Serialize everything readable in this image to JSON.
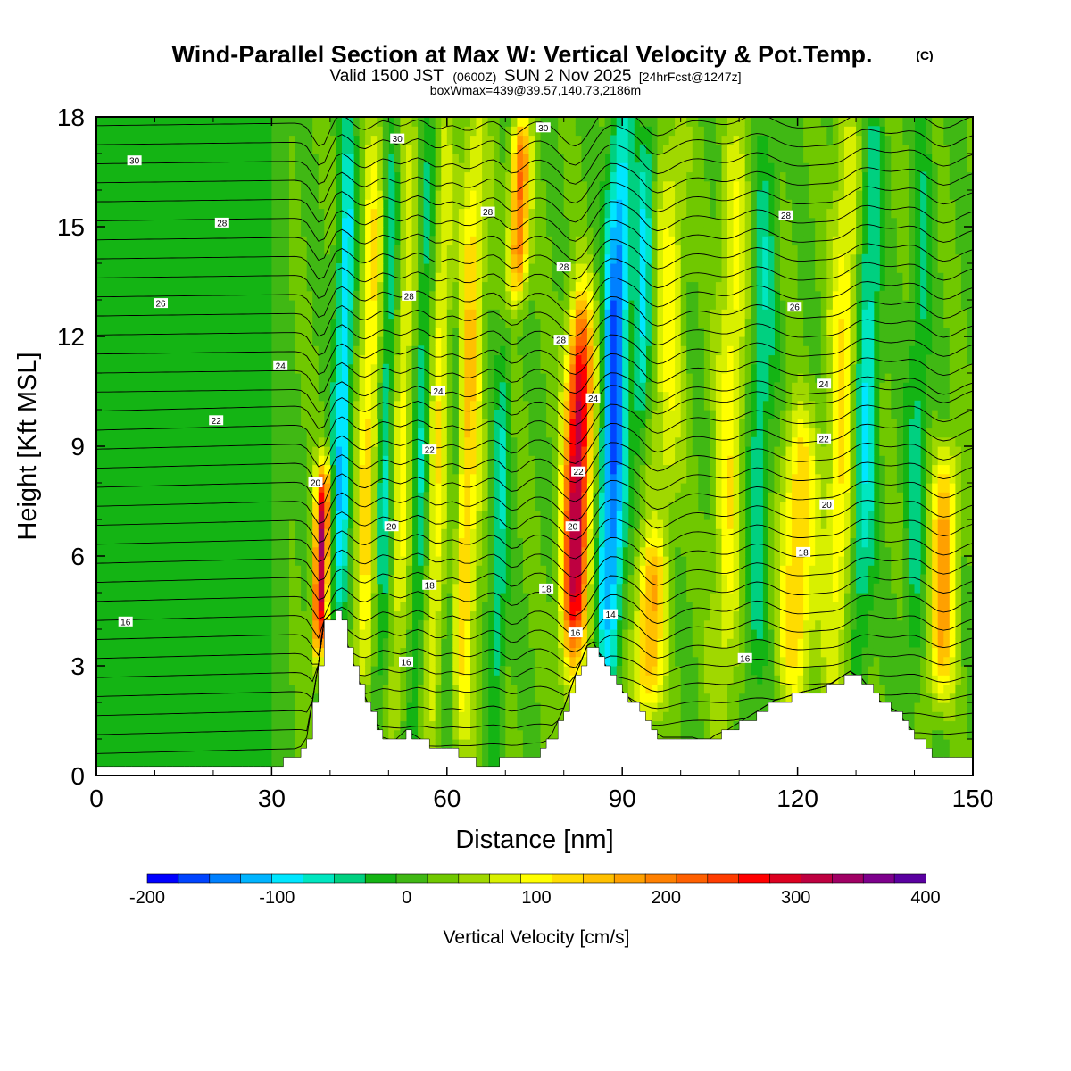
{
  "title": "Wind-Parallel Section at Max W: Vertical Velocity & Pot.Temp.",
  "copyright": "(C)",
  "subtitle_pre": "Valid 1500 JST",
  "subtitle_utc": "(0600Z)",
  "subtitle_date": "SUN 2 Nov 2025",
  "subtitle_fcst": "[24hrFcst@1247z]",
  "subtitle_box": "boxWmax=439@39.57,140.73,2186m",
  "chart_data": {
    "type": "heatmap",
    "xlabel": "Distance [nm]",
    "ylabel": "Height [Kft MSL]",
    "xlim": [
      0,
      150
    ],
    "ylim": [
      0,
      18
    ],
    "xticks": [
      0,
      30,
      60,
      90,
      120,
      150
    ],
    "yticks": [
      0,
      3,
      6,
      9,
      12,
      15,
      18
    ],
    "colorbar": {
      "label": "Vertical Velocity [cm/s]",
      "min": -200,
      "max": 400,
      "step": 25,
      "tick_values": [
        -200,
        -100,
        0,
        100,
        200,
        300,
        400
      ],
      "tick_labels": [
        "-200",
        "-100",
        "0",
        "100",
        "200",
        "300",
        "400"
      ],
      "colors": [
        "#0000ff",
        "#0044ff",
        "#0080ff",
        "#00b4ff",
        "#00e6ff",
        "#00e6c0",
        "#00d080",
        "#14b414",
        "#40b814",
        "#70c800",
        "#a0d800",
        "#d8f000",
        "#ffff00",
        "#ffdc00",
        "#ffc000",
        "#ffa000",
        "#ff8000",
        "#ff6000",
        "#ff3c00",
        "#ff0000",
        "#dc0020",
        "#be0040",
        "#a00064",
        "#7d008c",
        "#5a00a0"
      ]
    },
    "terrain_kft": [
      [
        0,
        0.3
      ],
      [
        30,
        0.3
      ],
      [
        34,
        0.5
      ],
      [
        36,
        1.0
      ],
      [
        37,
        2.0
      ],
      [
        38,
        3.0
      ],
      [
        39,
        4.2
      ],
      [
        41,
        4.5
      ],
      [
        42,
        4.2
      ],
      [
        43,
        3.5
      ],
      [
        45,
        2.5
      ],
      [
        47,
        1.7
      ],
      [
        49,
        1.0
      ],
      [
        51,
        0.9
      ],
      [
        53,
        1.2
      ],
      [
        55,
        1.0
      ],
      [
        57,
        0.8
      ],
      [
        60,
        0.7
      ],
      [
        63,
        0.5
      ],
      [
        66,
        0.3
      ],
      [
        70,
        0.4
      ],
      [
        74,
        0.4
      ],
      [
        76,
        0.7
      ],
      [
        78,
        1.1
      ],
      [
        80,
        1.8
      ],
      [
        82,
        2.7
      ],
      [
        84,
        3.5
      ],
      [
        85,
        3.6
      ],
      [
        87,
        3.0
      ],
      [
        89,
        2.4
      ],
      [
        91,
        2.1
      ],
      [
        93,
        1.7
      ],
      [
        95,
        1.2
      ],
      [
        97,
        1.0
      ],
      [
        100,
        1.0
      ],
      [
        105,
        1.0
      ],
      [
        108,
        1.2
      ],
      [
        112,
        1.6
      ],
      [
        116,
        2.0
      ],
      [
        120,
        2.2
      ],
      [
        125,
        2.4
      ],
      [
        129,
        2.8
      ],
      [
        131,
        2.6
      ],
      [
        134,
        2.0
      ],
      [
        137,
        1.7
      ],
      [
        140,
        1.1
      ],
      [
        143,
        0.6
      ],
      [
        150,
        0.6
      ]
    ],
    "updraft_bands": [
      {
        "x": 38.5,
        "w": 1.2,
        "peak": 320,
        "h0": 3.2,
        "h1": 8.5
      },
      {
        "x": 46,
        "w": 1.8,
        "peak": 110,
        "h0": 1.5,
        "h1": 18
      },
      {
        "x": 52,
        "w": 1.8,
        "peak": 80,
        "h0": 1.5,
        "h1": 18
      },
      {
        "x": 58,
        "w": 1.5,
        "peak": 90,
        "h0": 1.0,
        "h1": 18
      },
      {
        "x": 63,
        "w": 2.2,
        "peak": 130,
        "h0": 1.0,
        "h1": 18
      },
      {
        "x": 71,
        "w": 1.6,
        "peak": 210,
        "h0": 13,
        "h1": 18
      },
      {
        "x": 82,
        "w": 2.2,
        "peak": 330,
        "h0": 3.0,
        "h1": 13
      },
      {
        "x": 95,
        "w": 2.5,
        "peak": 150,
        "h0": 1.5,
        "h1": 6.5
      },
      {
        "x": 97,
        "w": 2.5,
        "peak": 80,
        "h0": 6.5,
        "h1": 18
      },
      {
        "x": 108,
        "w": 2.5,
        "peak": 90,
        "h0": 1.5,
        "h1": 18
      },
      {
        "x": 120,
        "w": 3.0,
        "peak": 130,
        "h0": 2.0,
        "h1": 10
      },
      {
        "x": 127,
        "w": 2.5,
        "peak": 100,
        "h0": 2.0,
        "h1": 18
      },
      {
        "x": 145,
        "w": 2.2,
        "peak": 160,
        "h0": 2.0,
        "h1": 9
      }
    ],
    "downdraft_bands": [
      {
        "x": 41.5,
        "w": 1.6,
        "peak": -120,
        "h0": 3.0,
        "h1": 18
      },
      {
        "x": 49,
        "w": 1.5,
        "peak": -80,
        "h0": 1.5,
        "h1": 18
      },
      {
        "x": 55,
        "w": 1.5,
        "peak": -70,
        "h0": 1.5,
        "h1": 18
      },
      {
        "x": 61,
        "w": 1.2,
        "peak": -60,
        "h0": 1.0,
        "h1": 14
      },
      {
        "x": 69,
        "w": 1.5,
        "peak": -70,
        "h0": 1.0,
        "h1": 12
      },
      {
        "x": 88,
        "w": 2.2,
        "peak": -180,
        "h0": 2.5,
        "h1": 18
      },
      {
        "x": 92.5,
        "w": 1.4,
        "peak": -100,
        "h0": 9,
        "h1": 18
      },
      {
        "x": 113,
        "w": 2.2,
        "peak": -70,
        "h0": 2.0,
        "h1": 18
      },
      {
        "x": 131,
        "w": 2.0,
        "peak": -100,
        "h0": 3.0,
        "h1": 18
      },
      {
        "x": 140,
        "w": 1.8,
        "peak": -60,
        "h0": 2.0,
        "h1": 18
      }
    ],
    "theta_contours": {
      "levels_C": [
        14,
        16,
        18,
        20,
        22,
        24,
        26,
        28,
        30
      ],
      "labels": [
        {
          "text": "30",
          "x": 6.5,
          "y": 16.8
        },
        {
          "text": "28",
          "x": 21.5,
          "y": 15.1
        },
        {
          "text": "26",
          "x": 11,
          "y": 12.9
        },
        {
          "text": "24",
          "x": 31.5,
          "y": 11.2
        },
        {
          "text": "22",
          "x": 20.5,
          "y": 9.7
        },
        {
          "text": "20",
          "x": 37.5,
          "y": 8.0
        },
        {
          "text": "16",
          "x": 5,
          "y": 4.2
        },
        {
          "text": "30",
          "x": 51.5,
          "y": 17.4
        },
        {
          "text": "30",
          "x": 76.5,
          "y": 17.7
        },
        {
          "text": "28",
          "x": 67,
          "y": 15.4
        },
        {
          "text": "28",
          "x": 80,
          "y": 13.9
        },
        {
          "text": "28",
          "x": 53.5,
          "y": 13.1
        },
        {
          "text": "28",
          "x": 79.5,
          "y": 11.9
        },
        {
          "text": "24",
          "x": 58.5,
          "y": 10.5
        },
        {
          "text": "24",
          "x": 85,
          "y": 10.3
        },
        {
          "text": "22",
          "x": 57,
          "y": 8.9
        },
        {
          "text": "22",
          "x": 82.5,
          "y": 8.3
        },
        {
          "text": "20",
          "x": 50.5,
          "y": 6.8
        },
        {
          "text": "20",
          "x": 81.5,
          "y": 6.8
        },
        {
          "text": "18",
          "x": 57,
          "y": 5.2
        },
        {
          "text": "18",
          "x": 77,
          "y": 5.1
        },
        {
          "text": "16",
          "x": 53,
          "y": 3.1
        },
        {
          "text": "16",
          "x": 82,
          "y": 3.9
        },
        {
          "text": "14",
          "x": 88,
          "y": 4.4
        },
        {
          "text": "28",
          "x": 118,
          "y": 15.3
        },
        {
          "text": "26",
          "x": 119.5,
          "y": 12.8
        },
        {
          "text": "24",
          "x": 124.5,
          "y": 10.7
        },
        {
          "text": "22",
          "x": 124.5,
          "y": 9.2
        },
        {
          "text": "20",
          "x": 125,
          "y": 7.4
        },
        {
          "text": "18",
          "x": 121,
          "y": 6.1
        },
        {
          "text": "16",
          "x": 111,
          "y": 3.2
        }
      ]
    }
  }
}
